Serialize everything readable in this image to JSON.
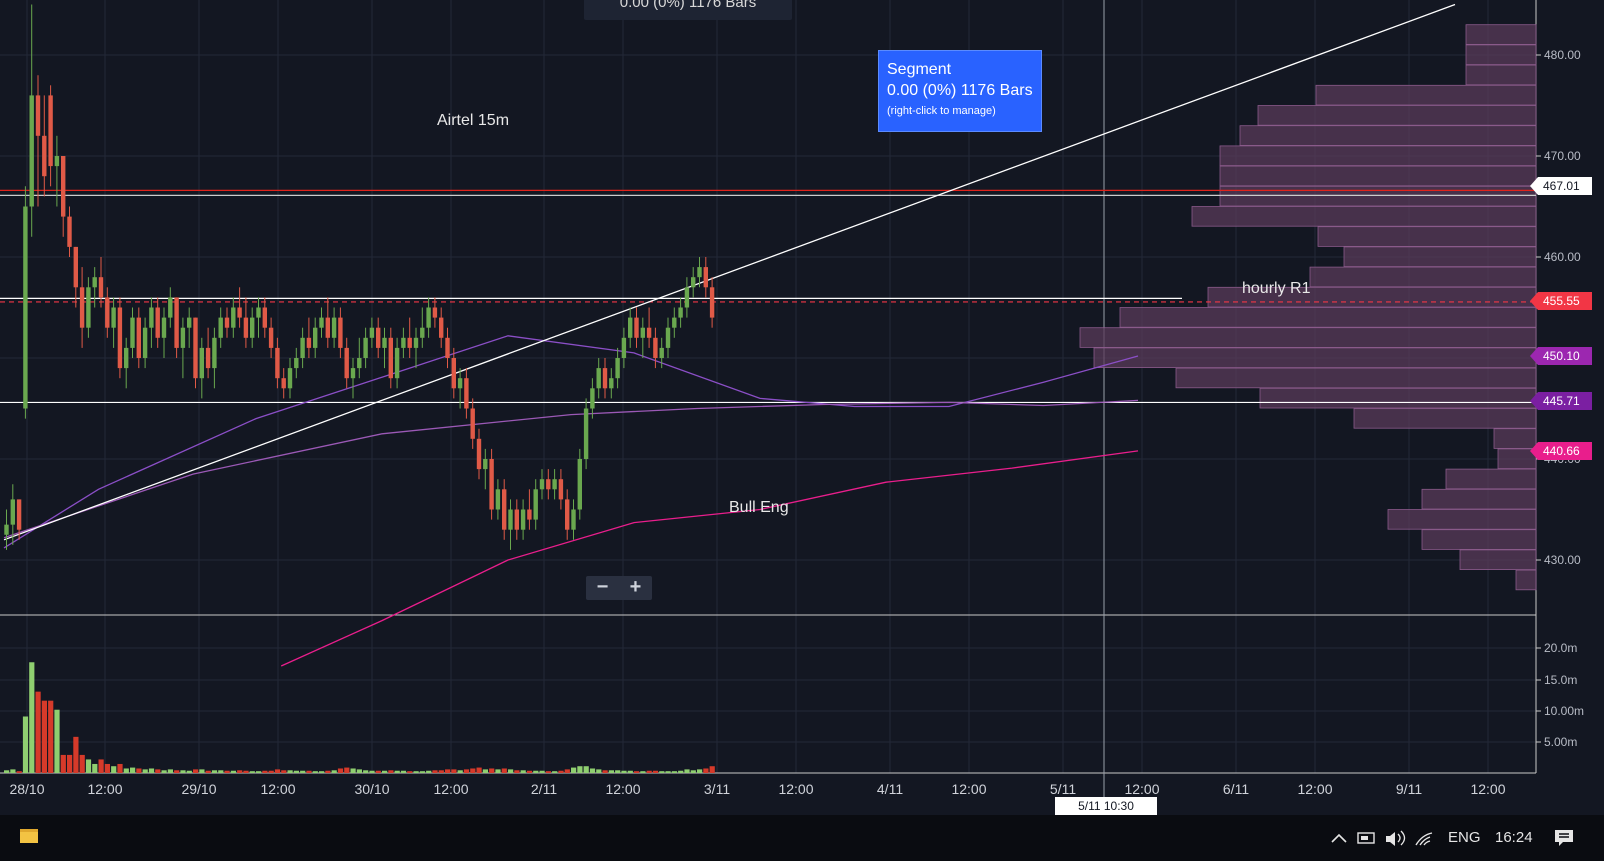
{
  "chart_data": {
    "type": "candlestick",
    "title": "Airtel 15m",
    "annotations": {
      "bull_eng": "Bull Eng",
      "hourly_r1": "hourly R1"
    },
    "segment_tooltip": {
      "title": "Segment",
      "value": "0.00 (0%) 1176 Bars",
      "hint": "(right-click to manage)"
    },
    "top_readout": "0.00 (0%) 1176 Bars",
    "x_ticks": [
      "28/10",
      "12:00",
      "29/10",
      "12:00",
      "30/10",
      "12:00",
      "2/11",
      "12:00",
      "3/11",
      "12:00",
      "4/11",
      "12:00",
      "5/11",
      "12:00",
      "6/11",
      "12:00",
      "9/11",
      "12:00"
    ],
    "y_ticks": [
      "480.00",
      "470.00",
      "460.00",
      "450.00",
      "440.00",
      "430.00"
    ],
    "volume_ticks": [
      "20.0m",
      "15.0m",
      "10.00m",
      "5.00m"
    ],
    "price_labels": [
      {
        "value": "467.01",
        "color": "#ffffff"
      },
      {
        "value": "455.55",
        "color": "#f23645"
      },
      {
        "value": "450.10",
        "color": "#9c27b0"
      },
      {
        "value": "445.71",
        "color": "#7b1fa2"
      },
      {
        "value": "440.66",
        "color": "#e91e8c"
      }
    ],
    "ylim": [
      425,
      485
    ],
    "colors": {
      "up": "#6aa84f",
      "down": "#e05a47",
      "vol_up": "#8fcf70",
      "vol_down": "#d63a2a",
      "profile": "#5a3b5a"
    },
    "horizontal_lines": [
      {
        "price": 466.6,
        "color": "#e0231b"
      },
      {
        "price": 466.1,
        "color": "#cccccc"
      },
      {
        "price": 455.9,
        "color": "#ffffff",
        "end_date": "5/11 12:00"
      },
      {
        "price": 455.55,
        "color": "#f23645",
        "dashed": true
      },
      {
        "price": 445.6,
        "color": "#ffffff"
      }
    ],
    "trendline": {
      "from": [
        0,
        432.0
      ],
      "to": [
        200,
        485.0
      ],
      "unit": "bars"
    },
    "moving_averages": [
      {
        "color": "#8b4fc7",
        "points": [
          [
            0,
            431.2
          ],
          [
            15,
            437
          ],
          [
            40,
            444
          ],
          [
            80,
            452.2
          ],
          [
            100,
            450.5
          ],
          [
            120,
            446
          ],
          [
            135,
            445.2
          ],
          [
            150,
            445.2
          ],
          [
            165,
            447.6
          ],
          [
            180,
            450.2
          ]
        ]
      },
      {
        "color": "#9b59b6",
        "points": [
          [
            0,
            432.2
          ],
          [
            30,
            438.5
          ],
          [
            60,
            442.5
          ],
          [
            90,
            444.4
          ],
          [
            110,
            445.0
          ],
          [
            130,
            445.4
          ],
          [
            150,
            445.6
          ],
          [
            165,
            445.3
          ],
          [
            180,
            445.8
          ]
        ]
      },
      {
        "color": "#e91e8c",
        "points": [
          [
            44,
            419.5
          ],
          [
            60,
            424
          ],
          [
            80,
            430
          ],
          [
            100,
            433.7
          ],
          [
            120,
            435
          ],
          [
            140,
            437.7
          ],
          [
            160,
            439.1
          ],
          [
            180,
            440.8
          ]
        ]
      }
    ],
    "volume_profile": [
      {
        "price": 482,
        "width": 70
      },
      {
        "price": 480,
        "width": 70
      },
      {
        "price": 478,
        "width": 70
      },
      {
        "price": 476,
        "width": 220
      },
      {
        "price": 474,
        "width": 278
      },
      {
        "price": 472,
        "width": 296
      },
      {
        "price": 470,
        "width": 316
      },
      {
        "price": 468,
        "width": 316
      },
      {
        "price": 466,
        "width": 316
      },
      {
        "price": 464,
        "width": 344
      },
      {
        "price": 462,
        "width": 218
      },
      {
        "price": 460,
        "width": 192
      },
      {
        "price": 458,
        "width": 226
      },
      {
        "price": 456,
        "width": 328
      },
      {
        "price": 454,
        "width": 416
      },
      {
        "price": 452,
        "width": 456
      },
      {
        "price": 450,
        "width": 442
      },
      {
        "price": 448,
        "width": 360
      },
      {
        "price": 446,
        "width": 276
      },
      {
        "price": 444,
        "width": 182
      },
      {
        "price": 442,
        "width": 42
      },
      {
        "price": 440,
        "width": 38
      },
      {
        "price": 438,
        "width": 90
      },
      {
        "price": 436,
        "width": 114
      },
      {
        "price": 434,
        "width": 148
      },
      {
        "price": 432,
        "width": 114
      },
      {
        "price": 430,
        "width": 76
      },
      {
        "price": 428,
        "width": 20
      }
    ],
    "candles": [
      {
        "o": 432.5,
        "h": 435,
        "l": 431,
        "c": 433.5,
        "v": 0.6
      },
      {
        "o": 433.5,
        "h": 437.5,
        "l": 431.5,
        "c": 436,
        "v": 0.8
      },
      {
        "o": 436,
        "h": 436,
        "l": 432,
        "c": 433,
        "v": 0.4
      },
      {
        "o": 445,
        "h": 467,
        "l": 444,
        "c": 465,
        "v": 12.5
      },
      {
        "o": 465,
        "h": 485,
        "l": 462,
        "c": 476,
        "v": 24.5
      },
      {
        "o": 476,
        "h": 478,
        "l": 465,
        "c": 472,
        "v": 18
      },
      {
        "o": 472,
        "h": 476,
        "l": 466,
        "c": 468,
        "v": 16
      },
      {
        "o": 476,
        "h": 477,
        "l": 467,
        "c": 469,
        "v": 16
      },
      {
        "o": 469,
        "h": 472,
        "l": 465,
        "c": 470,
        "v": 14
      },
      {
        "o": 470,
        "h": 470,
        "l": 462,
        "c": 464,
        "v": 4
      },
      {
        "o": 464,
        "h": 465,
        "l": 460,
        "c": 461,
        "v": 4
      },
      {
        "o": 461,
        "h": 461,
        "l": 455,
        "c": 457,
        "v": 8
      },
      {
        "o": 457,
        "h": 459,
        "l": 451,
        "c": 453,
        "v": 4
      },
      {
        "o": 453,
        "h": 458,
        "l": 452,
        "c": 457,
        "v": 3
      },
      {
        "o": 457,
        "h": 459,
        "l": 455,
        "c": 458,
        "v": 2
      },
      {
        "o": 458,
        "h": 460,
        "l": 455,
        "c": 456,
        "v": 3
      },
      {
        "o": 456,
        "h": 457,
        "l": 452,
        "c": 453,
        "v": 2
      },
      {
        "o": 453,
        "h": 456,
        "l": 451,
        "c": 455,
        "v": 1.5
      },
      {
        "o": 455,
        "h": 456,
        "l": 448,
        "c": 449,
        "v": 2
      },
      {
        "o": 449,
        "h": 452,
        "l": 447,
        "c": 451,
        "v": 1
      },
      {
        "o": 451,
        "h": 455,
        "l": 450,
        "c": 454,
        "v": 1.2
      },
      {
        "o": 454,
        "h": 455,
        "l": 449,
        "c": 450,
        "v": 1
      },
      {
        "o": 450,
        "h": 454,
        "l": 449,
        "c": 453,
        "v": 0.8
      },
      {
        "o": 453,
        "h": 456,
        "l": 451,
        "c": 455,
        "v": 1
      },
      {
        "o": 455,
        "h": 456,
        "l": 451,
        "c": 452,
        "v": 0.8
      },
      {
        "o": 452,
        "h": 455,
        "l": 450,
        "c": 454,
        "v": 0.6
      },
      {
        "o": 454,
        "h": 457,
        "l": 453,
        "c": 456,
        "v": 0.8
      },
      {
        "o": 456,
        "h": 456,
        "l": 450,
        "c": 451,
        "v": 0.6
      },
      {
        "o": 451,
        "h": 454,
        "l": 448,
        "c": 453,
        "v": 0.6
      },
      {
        "o": 453,
        "h": 455,
        "l": 451,
        "c": 454,
        "v": 0.5
      },
      {
        "o": 454,
        "h": 454,
        "l": 447,
        "c": 448,
        "v": 0.8
      },
      {
        "o": 448,
        "h": 452,
        "l": 446,
        "c": 451,
        "v": 0.8
      },
      {
        "o": 451,
        "h": 453,
        "l": 448,
        "c": 449,
        "v": 0.5
      },
      {
        "o": 449,
        "h": 453,
        "l": 447,
        "c": 452,
        "v": 0.6
      },
      {
        "o": 452,
        "h": 455,
        "l": 451,
        "c": 454,
        "v": 0.6
      },
      {
        "o": 454,
        "h": 455,
        "l": 452,
        "c": 453,
        "v": 0.5
      },
      {
        "o": 453,
        "h": 456,
        "l": 452,
        "c": 455,
        "v": 0.5
      },
      {
        "o": 455,
        "h": 457,
        "l": 453,
        "c": 454,
        "v": 0.6
      },
      {
        "o": 454,
        "h": 456,
        "l": 451,
        "c": 452,
        "v": 0.5
      },
      {
        "o": 452,
        "h": 455,
        "l": 451,
        "c": 454,
        "v": 0.4
      },
      {
        "o": 454,
        "h": 456,
        "l": 452,
        "c": 455,
        "v": 0.4
      },
      {
        "o": 455,
        "h": 456,
        "l": 452,
        "c": 453,
        "v": 0.5
      },
      {
        "o": 453,
        "h": 454,
        "l": 450,
        "c": 451,
        "v": 0.5
      },
      {
        "o": 451,
        "h": 452,
        "l": 447,
        "c": 448,
        "v": 0.8
      },
      {
        "o": 448,
        "h": 449,
        "l": 446,
        "c": 447,
        "v": 0.6
      },
      {
        "o": 447,
        "h": 450,
        "l": 446,
        "c": 449,
        "v": 0.6
      },
      {
        "o": 449,
        "h": 451,
        "l": 448,
        "c": 450,
        "v": 0.5
      },
      {
        "o": 450,
        "h": 453,
        "l": 449,
        "c": 452,
        "v": 0.5
      },
      {
        "o": 452,
        "h": 454,
        "l": 450,
        "c": 451,
        "v": 0.5
      },
      {
        "o": 451,
        "h": 454,
        "l": 450,
        "c": 453,
        "v": 0.4
      },
      {
        "o": 453,
        "h": 455,
        "l": 452,
        "c": 454,
        "v": 0.4
      },
      {
        "o": 454,
        "h": 456,
        "l": 451,
        "c": 452,
        "v": 0.5
      },
      {
        "o": 452,
        "h": 455,
        "l": 451,
        "c": 454,
        "v": 0.6
      },
      {
        "o": 454,
        "h": 455,
        "l": 450,
        "c": 451,
        "v": 1.0
      },
      {
        "o": 451,
        "h": 452,
        "l": 447,
        "c": 448,
        "v": 1.2
      },
      {
        "o": 448,
        "h": 450,
        "l": 446,
        "c": 449,
        "v": 1.0
      },
      {
        "o": 449,
        "h": 452,
        "l": 448,
        "c": 450,
        "v": 0.8
      },
      {
        "o": 450,
        "h": 453,
        "l": 449,
        "c": 452,
        "v": 0.6
      },
      {
        "o": 452,
        "h": 454,
        "l": 451,
        "c": 453,
        "v": 0.5
      },
      {
        "o": 453,
        "h": 454,
        "l": 450,
        "c": 451,
        "v": 0.5
      },
      {
        "o": 451,
        "h": 453,
        "l": 449,
        "c": 452,
        "v": 0.5
      },
      {
        "o": 452,
        "h": 453,
        "l": 447,
        "c": 448,
        "v": 0.6
      },
      {
        "o": 448,
        "h": 452,
        "l": 447,
        "c": 451,
        "v": 0.5
      },
      {
        "o": 451,
        "h": 453,
        "l": 450,
        "c": 452,
        "v": 0.5
      },
      {
        "o": 452,
        "h": 454,
        "l": 450,
        "c": 451,
        "v": 0.4
      },
      {
        "o": 451,
        "h": 453,
        "l": 449,
        "c": 452,
        "v": 0.4
      },
      {
        "o": 452,
        "h": 455,
        "l": 451,
        "c": 453,
        "v": 0.4
      },
      {
        "o": 453,
        "h": 456,
        "l": 452,
        "c": 455,
        "v": 0.5
      },
      {
        "o": 455,
        "h": 456,
        "l": 453,
        "c": 454,
        "v": 0.6
      },
      {
        "o": 454,
        "h": 455,
        "l": 451,
        "c": 452,
        "v": 0.6
      },
      {
        "o": 452,
        "h": 453,
        "l": 449,
        "c": 450,
        "v": 0.8
      },
      {
        "o": 450,
        "h": 451,
        "l": 446,
        "c": 447,
        "v": 0.8
      },
      {
        "o": 447,
        "h": 449,
        "l": 445,
        "c": 448,
        "v": 0.6
      },
      {
        "o": 448,
        "h": 449,
        "l": 444,
        "c": 445,
        "v": 0.8
      },
      {
        "o": 445,
        "h": 446,
        "l": 441,
        "c": 442,
        "v": 1.0
      },
      {
        "o": 442,
        "h": 443,
        "l": 438,
        "c": 439,
        "v": 1.2
      },
      {
        "o": 439,
        "h": 441,
        "l": 437,
        "c": 440,
        "v": 0.8
      },
      {
        "o": 440,
        "h": 441,
        "l": 434,
        "c": 435,
        "v": 1.0
      },
      {
        "o": 435,
        "h": 438,
        "l": 434,
        "c": 437,
        "v": 0.8
      },
      {
        "o": 437,
        "h": 438,
        "l": 432,
        "c": 433,
        "v": 1.0
      },
      {
        "o": 433,
        "h": 436,
        "l": 431,
        "c": 435,
        "v": 0.8
      },
      {
        "o": 435,
        "h": 436,
        "l": 432,
        "c": 433,
        "v": 0.6
      },
      {
        "o": 433,
        "h": 436,
        "l": 432,
        "c": 435,
        "v": 0.6
      },
      {
        "o": 435,
        "h": 437,
        "l": 433,
        "c": 434,
        "v": 0.5
      },
      {
        "o": 434,
        "h": 438,
        "l": 433,
        "c": 437,
        "v": 0.5
      },
      {
        "o": 437,
        "h": 439,
        "l": 436,
        "c": 438,
        "v": 0.5
      },
      {
        "o": 438,
        "h": 439,
        "l": 436,
        "c": 437,
        "v": 0.4
      },
      {
        "o": 437,
        "h": 439,
        "l": 436,
        "c": 438,
        "v": 0.4
      },
      {
        "o": 438,
        "h": 439,
        "l": 435,
        "c": 436,
        "v": 0.5
      },
      {
        "o": 436,
        "h": 437,
        "l": 432,
        "c": 433,
        "v": 0.8
      },
      {
        "o": 433,
        "h": 436,
        "l": 432,
        "c": 435,
        "v": 1.2
      },
      {
        "o": 435,
        "h": 441,
        "l": 434,
        "c": 440,
        "v": 1.5
      },
      {
        "o": 440,
        "h": 446,
        "l": 439,
        "c": 445,
        "v": 1.5
      },
      {
        "o": 445,
        "h": 448,
        "l": 444,
        "c": 447,
        "v": 1.0
      },
      {
        "o": 447,
        "h": 450,
        "l": 446,
        "c": 449,
        "v": 0.8
      },
      {
        "o": 449,
        "h": 450,
        "l": 446,
        "c": 447,
        "v": 0.6
      },
      {
        "o": 447,
        "h": 449,
        "l": 446,
        "c": 448,
        "v": 0.6
      },
      {
        "o": 448,
        "h": 451,
        "l": 447,
        "c": 450,
        "v": 0.6
      },
      {
        "o": 450,
        "h": 453,
        "l": 449,
        "c": 452,
        "v": 0.5
      },
      {
        "o": 452,
        "h": 455,
        "l": 451,
        "c": 454,
        "v": 0.5
      },
      {
        "o": 454,
        "h": 455,
        "l": 451,
        "c": 452,
        "v": 0.4
      },
      {
        "o": 452,
        "h": 454,
        "l": 450,
        "c": 453,
        "v": 0.4
      },
      {
        "o": 453,
        "h": 455,
        "l": 451,
        "c": 452,
        "v": 0.5
      },
      {
        "o": 452,
        "h": 453,
        "l": 449,
        "c": 450,
        "v": 0.5
      },
      {
        "o": 450,
        "h": 452,
        "l": 449,
        "c": 451,
        "v": 0.4
      },
      {
        "o": 451,
        "h": 454,
        "l": 450,
        "c": 453,
        "v": 0.4
      },
      {
        "o": 453,
        "h": 455,
        "l": 452,
        "c": 454,
        "v": 0.4
      },
      {
        "o": 454,
        "h": 456,
        "l": 453,
        "c": 455,
        "v": 0.5
      },
      {
        "o": 455,
        "h": 458,
        "l": 454,
        "c": 457,
        "v": 0.8
      },
      {
        "o": 457,
        "h": 459,
        "l": 456,
        "c": 458,
        "v": 0.6
      },
      {
        "o": 458,
        "h": 460,
        "l": 457,
        "c": 459,
        "v": 0.8
      },
      {
        "o": 459,
        "h": 460,
        "l": 456,
        "c": 457,
        "v": 1.0
      },
      {
        "o": 457,
        "h": 458,
        "l": 453,
        "c": 454,
        "v": 1.5
      }
    ]
  },
  "taskbar": {
    "language": "ENG",
    "time": "16:24"
  },
  "crosshair_date": "5/11 10:30"
}
